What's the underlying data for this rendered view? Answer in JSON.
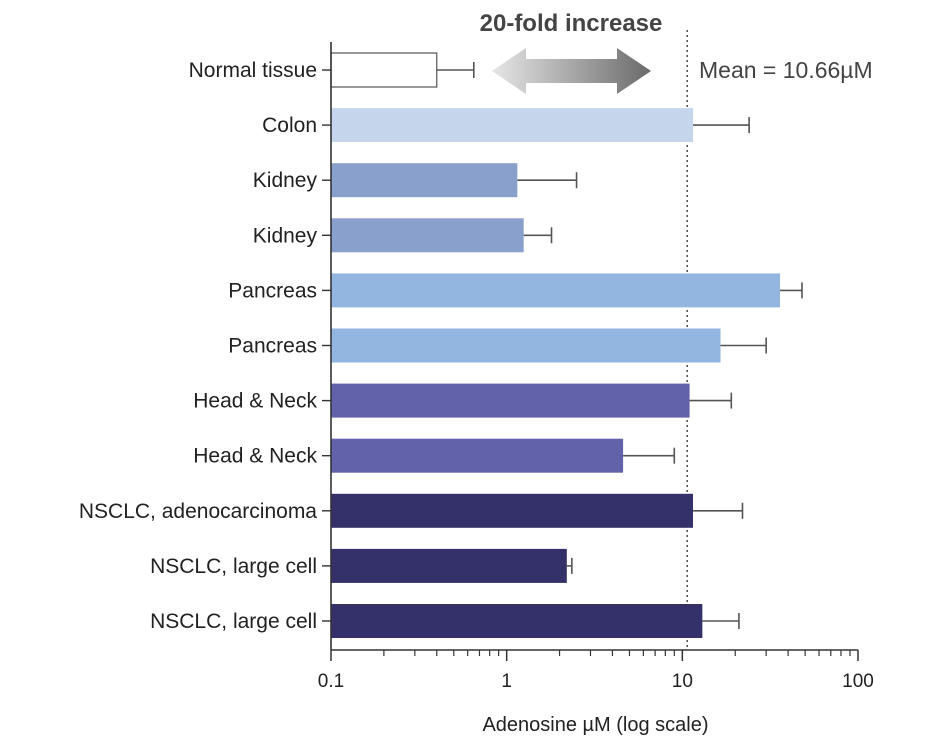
{
  "chart_data": {
    "type": "bar",
    "orientation": "horizontal",
    "x_scale": "log",
    "xlim": [
      0.1,
      100
    ],
    "xticks": [
      "0.1",
      "1",
      "10",
      "100"
    ],
    "xlabel": "Adenosine µM (log scale)",
    "ylabel": "",
    "title": "",
    "grid": false,
    "categories": [
      "Normal tissue",
      "Colon",
      "Kidney",
      "Kidney",
      "Pancreas",
      "Pancreas",
      "Head & Neck",
      "Head & Neck",
      "NSCLC, adenocarcinoma",
      "NSCLC, large cell",
      "NSCLC, large cell"
    ],
    "values": [
      0.4,
      11.5,
      1.15,
      1.25,
      36,
      16.5,
      11,
      4.6,
      11.5,
      2.2,
      13
    ],
    "error_upper": [
      0.65,
      24,
      2.5,
      1.8,
      48,
      30,
      19,
      9,
      22,
      2.35,
      21
    ],
    "bar_colors": [
      "#ffffff",
      "#c5d6ec",
      "#8aa0cc",
      "#8aa0cc",
      "#93b6e0",
      "#93b6e0",
      "#6262aa",
      "#6262aa",
      "#34306a",
      "#34306a",
      "#34306a"
    ],
    "mean_line": {
      "value": 10.66,
      "label": "Mean = 10.66µM"
    },
    "annotation": {
      "text": "20-fold increase",
      "arrow": "double-headed",
      "arrow_color": "#777777"
    }
  }
}
